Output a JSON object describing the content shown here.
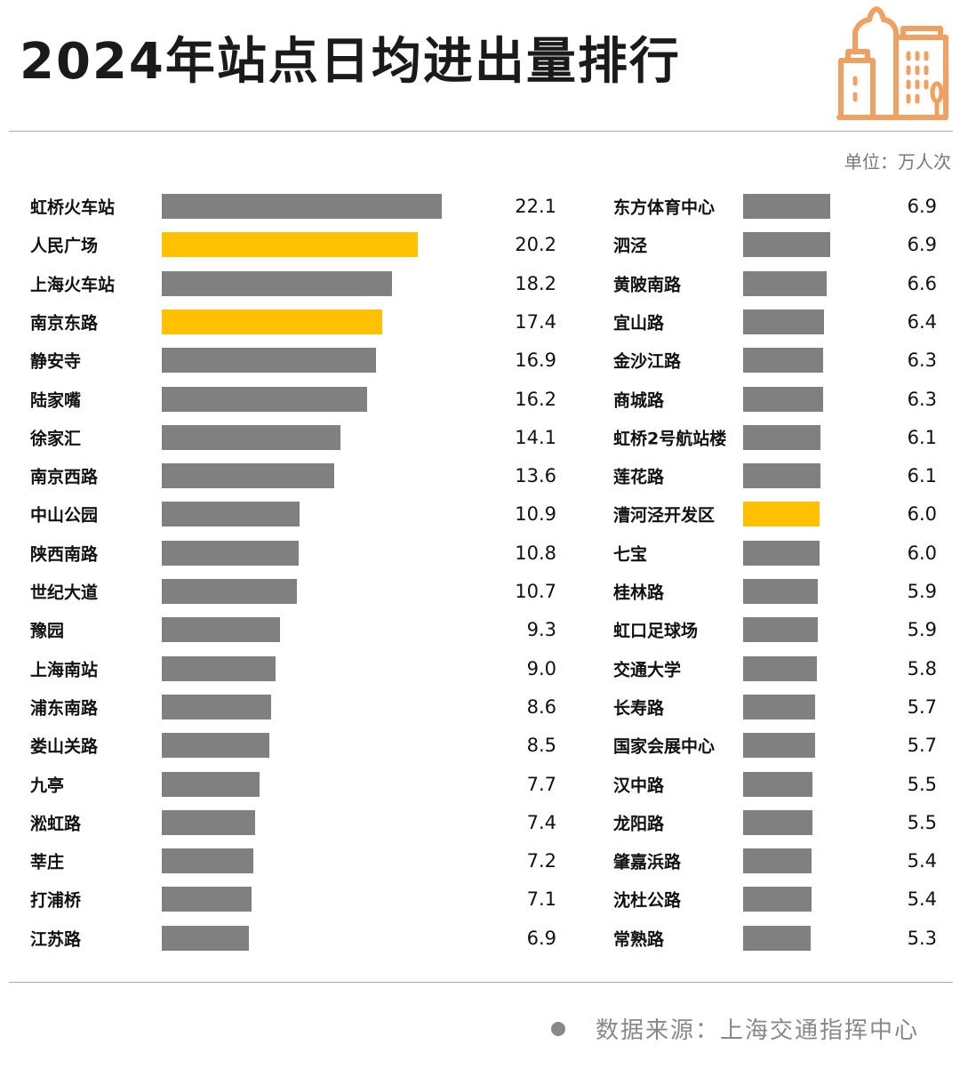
{
  "title": "2024年站点日均进出量排行",
  "unit": "单位：万人次",
  "footer": "数据来源：上海交通指挥中心",
  "colors": {
    "default": "#808080",
    "highlight": "#FFC000",
    "icon": "#F0A060"
  },
  "icon": "city-buildings-icon",
  "chart_data": {
    "type": "bar",
    "orientation": "horizontal",
    "title": "2024年站点日均进出量排行",
    "unit": "万人次",
    "columns": [
      {
        "categories": [
          "虹桥火车站",
          "人民广场",
          "上海火车站",
          "南京东路",
          "静安寺",
          "陆家嘴",
          "徐家汇",
          "南京西路",
          "中山公园",
          "陕西南路",
          "世纪大道",
          "豫园",
          "上海南站",
          "浦东南路",
          "娄山关路",
          "九亭",
          "淞虹路",
          "莘庄",
          "打浦桥",
          "江苏路"
        ],
        "values": [
          22.1,
          20.2,
          18.2,
          17.4,
          16.9,
          16.2,
          14.1,
          13.6,
          10.9,
          10.8,
          10.7,
          9.3,
          9.0,
          8.6,
          8.5,
          7.7,
          7.4,
          7.2,
          7.1,
          6.9
        ],
        "display": [
          "22.1",
          "20.2",
          "18.2",
          "17.4",
          "16.9",
          "16.2",
          "14.1",
          "13.6",
          "10.9",
          "10.8",
          "10.7",
          "9.3",
          "9.0",
          "8.6",
          "8.5",
          "7.7",
          "7.4",
          "7.2",
          "7.1",
          "6.9"
        ],
        "highlighted": [
          1,
          3
        ]
      },
      {
        "categories": [
          "东方体育中心",
          "泗泾",
          "黄陂南路",
          "宜山路",
          "金沙江路",
          "商城路",
          "虹桥2号航站楼",
          "莲花路",
          "漕河泾开发区",
          "七宝",
          "桂林路",
          "虹口足球场",
          "交通大学",
          "长寿路",
          "国家会展中心",
          "汉中路",
          "龙阳路",
          "肇嘉浜路",
          "沈杜公路",
          "常熟路"
        ],
        "values": [
          6.9,
          6.9,
          6.6,
          6.4,
          6.3,
          6.3,
          6.1,
          6.1,
          6.0,
          6.0,
          5.9,
          5.9,
          5.8,
          5.7,
          5.7,
          5.5,
          5.5,
          5.4,
          5.4,
          5.3
        ],
        "display": [
          "6.9",
          "6.9",
          "6.6",
          "6.4",
          "6.3",
          "6.3",
          "6.1",
          "6.1",
          "6.0",
          "6.0",
          "5.9",
          "5.9",
          "5.8",
          "5.7",
          "5.7",
          "5.5",
          "5.5",
          "5.4",
          "5.4",
          "5.3"
        ],
        "highlighted": [
          8
        ]
      }
    ]
  }
}
